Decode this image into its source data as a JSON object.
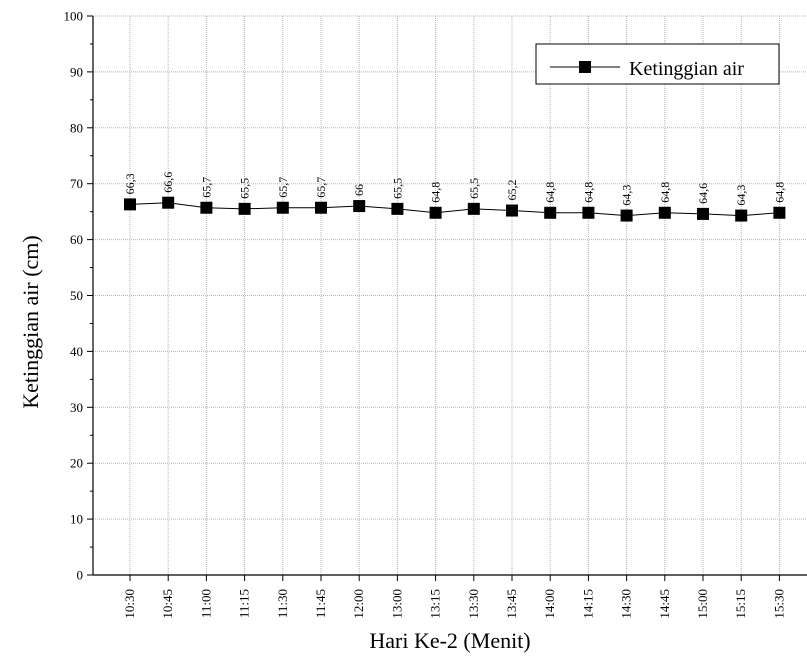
{
  "chart_data": {
    "type": "line",
    "xlabel": "Hari Ke-2 (Menit)",
    "ylabel": "Ketinggian air (cm)",
    "ylim": [
      0,
      100
    ],
    "yticks": [
      0,
      10,
      20,
      30,
      40,
      50,
      60,
      70,
      80,
      90,
      100
    ],
    "grid": true,
    "legend_position": "top-right",
    "categories": [
      "10:30",
      "10:45",
      "11:00",
      "11:15",
      "11:30",
      "11:45",
      "12:00",
      "13:00",
      "13:15",
      "13:30",
      "13:45",
      "14:00",
      "14:15",
      "14:30",
      "14:45",
      "15:00",
      "15:15",
      "15:30"
    ],
    "series": [
      {
        "name": "Ketinggian air",
        "values": [
          66.3,
          66.6,
          65.7,
          65.5,
          65.7,
          65.7,
          66,
          65.5,
          64.8,
          65.5,
          65.2,
          64.8,
          64.8,
          64.3,
          64.8,
          64.6,
          64.3,
          64.8
        ],
        "labels": [
          "66,3",
          "66,6",
          "65,7",
          "65,5",
          "65,7",
          "65,7",
          "66",
          "65,5",
          "64,8",
          "65,5",
          "65,2",
          "64,8",
          "64,8",
          "64,3",
          "64,8",
          "64,6",
          "64,3",
          "64,8"
        ],
        "color": "#000000",
        "marker": "square"
      }
    ]
  }
}
